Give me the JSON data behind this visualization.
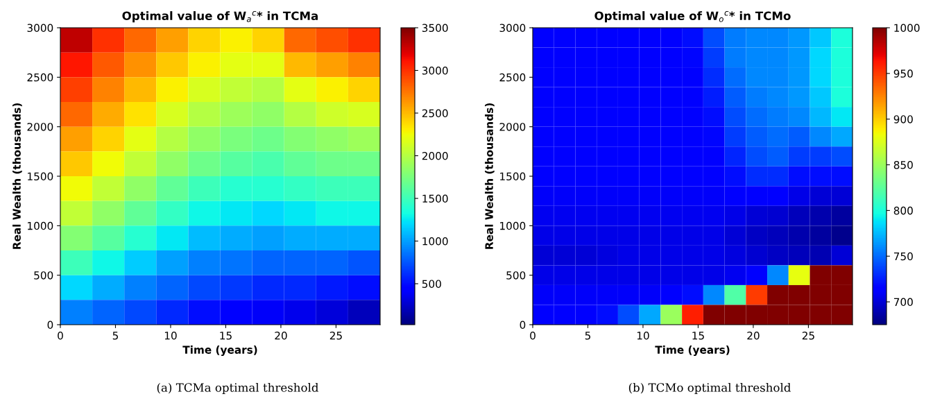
{
  "chart_data": [
    {
      "type": "heatmap",
      "title": "Optimal value of W$_{a}$$^{c}$* in TCMa",
      "xlabel": "Time (years)",
      "ylabel": "Real Wealth (thousands)",
      "annotations": [
        "(a) TCMa optimal threshold"
      ],
      "xlim": [
        0,
        29
      ],
      "xticks": [
        0,
        5,
        10,
        15,
        20,
        25
      ],
      "ylim": [
        0,
        3000
      ],
      "yticks": [
        0,
        500,
        1000,
        1500,
        2000,
        2500,
        3000
      ],
      "clim": [
        20,
        3500
      ],
      "cticks": [
        500,
        1000,
        1500,
        2000,
        2500,
        3000,
        3500
      ],
      "cells": [
        [
          3300,
          3000,
          2800,
          2600,
          2400,
          2300,
          2400,
          2800,
          2900,
          3000
        ],
        [
          3100,
          2850,
          2650,
          2450,
          2300,
          2200,
          2200,
          2500,
          2600,
          2700
        ],
        [
          2950,
          2700,
          2500,
          2300,
          2150,
          2050,
          2000,
          2200,
          2300,
          2400
        ],
        [
          2800,
          2550,
          2350,
          2150,
          2000,
          1900,
          1850,
          2000,
          2100,
          2150
        ],
        [
          2600,
          2400,
          2200,
          2000,
          1850,
          1750,
          1700,
          1800,
          1850,
          1900
        ],
        [
          2450,
          2250,
          2050,
          1850,
          1700,
          1600,
          1550,
          1650,
          1700,
          1700
        ],
        [
          2250,
          2050,
          1850,
          1650,
          1500,
          1400,
          1400,
          1450,
          1500,
          1500
        ],
        [
          2050,
          1850,
          1650,
          1450,
          1300,
          1250,
          1200,
          1250,
          1300,
          1300
        ],
        [
          1800,
          1600,
          1400,
          1250,
          1100,
          1050,
          1000,
          1050,
          1050,
          1050
        ],
        [
          1500,
          1300,
          1150,
          1000,
          900,
          850,
          800,
          800,
          800,
          750
        ],
        [
          1200,
          1050,
          900,
          800,
          700,
          650,
          600,
          600,
          550,
          500
        ],
        [
          900,
          800,
          700,
          600,
          500,
          450,
          400,
          350,
          300,
          200
        ]
      ]
    },
    {
      "type": "heatmap",
      "title": "Optimal value of W$_{o}$$^{c}$* in TCMo",
      "xlabel": "Time (years)",
      "ylabel": "Real Wealth (thousands)",
      "annotations": [
        "(b) TCMo optimal threshold"
      ],
      "xlim": [
        0,
        29
      ],
      "xticks": [
        0,
        5,
        10,
        15,
        20,
        25
      ],
      "ylim": [
        0,
        3000
      ],
      "yticks": [
        0,
        500,
        1000,
        1500,
        2000,
        2500,
        3000
      ],
      "clim": [
        675,
        1000
      ],
      "cticks": [
        700,
        750,
        800,
        850,
        900,
        950,
        1000
      ],
      "cells": [
        [
          715,
          715,
          715,
          715,
          715,
          715,
          715,
          720,
          740,
          755,
          760,
          760,
          765,
          780,
          800
        ],
        [
          715,
          715,
          715,
          715,
          715,
          715,
          715,
          718,
          735,
          755,
          760,
          760,
          765,
          785,
          800
        ],
        [
          715,
          715,
          715,
          715,
          715,
          715,
          715,
          715,
          730,
          750,
          760,
          760,
          765,
          785,
          800
        ],
        [
          715,
          715,
          715,
          715,
          715,
          715,
          715,
          715,
          725,
          745,
          755,
          760,
          765,
          780,
          800
        ],
        [
          715,
          715,
          715,
          715,
          715,
          715,
          715,
          715,
          720,
          740,
          750,
          755,
          760,
          775,
          790
        ],
        [
          715,
          715,
          715,
          715,
          715,
          715,
          715,
          715,
          718,
          735,
          745,
          750,
          745,
          760,
          770
        ],
        [
          715,
          715,
          715,
          715,
          715,
          715,
          715,
          715,
          715,
          728,
          740,
          745,
          735,
          735,
          740
        ],
        [
          712,
          712,
          712,
          712,
          712,
          712,
          712,
          712,
          712,
          720,
          730,
          730,
          720,
          720,
          720
        ],
        [
          710,
          710,
          710,
          710,
          710,
          710,
          710,
          710,
          710,
          712,
          715,
          712,
          705,
          700,
          700
        ],
        [
          708,
          708,
          708,
          708,
          708,
          708,
          708,
          708,
          708,
          705,
          700,
          698,
          692,
          688,
          685
        ],
        [
          705,
          705,
          705,
          705,
          705,
          705,
          705,
          705,
          705,
          700,
          695,
          692,
          688,
          684,
          680
        ],
        [
          700,
          700,
          700,
          702,
          705,
          705,
          705,
          705,
          705,
          702,
          698,
          695,
          692,
          690,
          700
        ],
        [
          705,
          705,
          705,
          705,
          705,
          705,
          705,
          705,
          705,
          708,
          712,
          760,
          880,
          1000,
          1000
        ],
        [
          710,
          710,
          710,
          710,
          710,
          710,
          715,
          720,
          760,
          820,
          950,
          1000,
          1000,
          1000,
          1000
        ],
        [
          715,
          715,
          715,
          720,
          740,
          770,
          850,
          960,
          1000,
          1000,
          1000,
          1000,
          1000,
          1000,
          1000
        ]
      ]
    }
  ]
}
